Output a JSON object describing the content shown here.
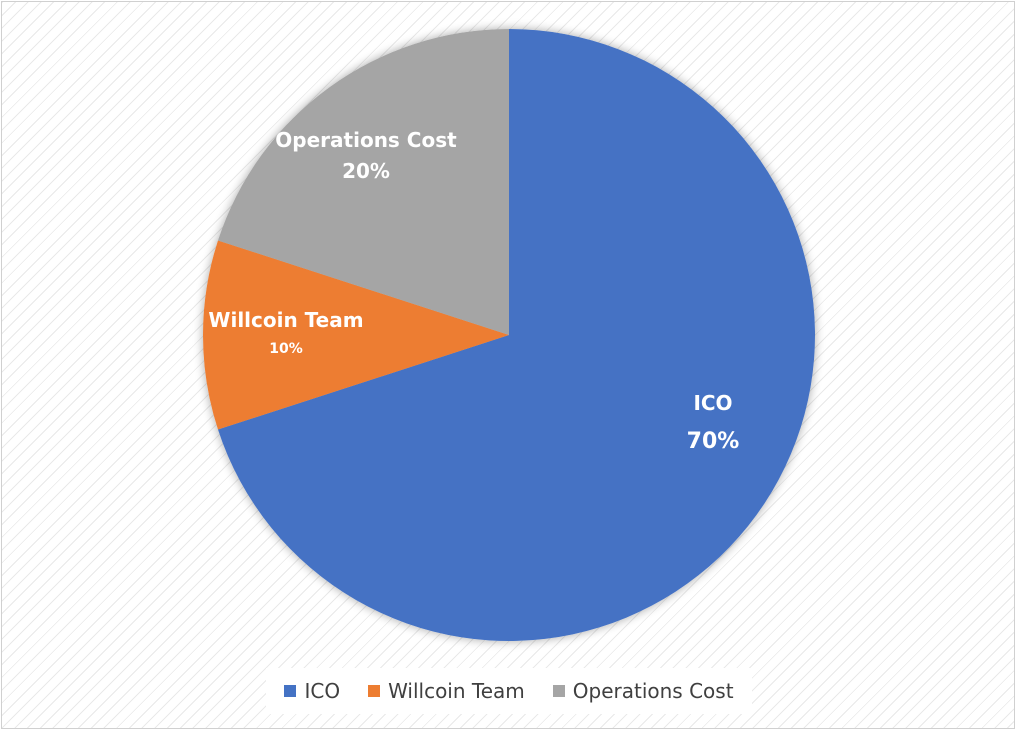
{
  "chart_data": {
    "type": "pie",
    "title": "",
    "slices": [
      {
        "name": "ICO",
        "value": 70,
        "label": "70%",
        "color": "#4472C4"
      },
      {
        "name": "Willcoin Team",
        "value": 10,
        "label": "10%",
        "color": "#ED7D31"
      },
      {
        "name": "Operations Cost",
        "value": 20,
        "label": "20%",
        "color": "#A5A5A5"
      }
    ],
    "legend": {
      "position": "bottom",
      "items": [
        {
          "label": "ICO",
          "color": "#4472C4"
        },
        {
          "label": "Willcoin Team",
          "color": "#ED7D31"
        },
        {
          "label": "Operations Cost",
          "color": "#A5A5A5"
        }
      ]
    }
  }
}
